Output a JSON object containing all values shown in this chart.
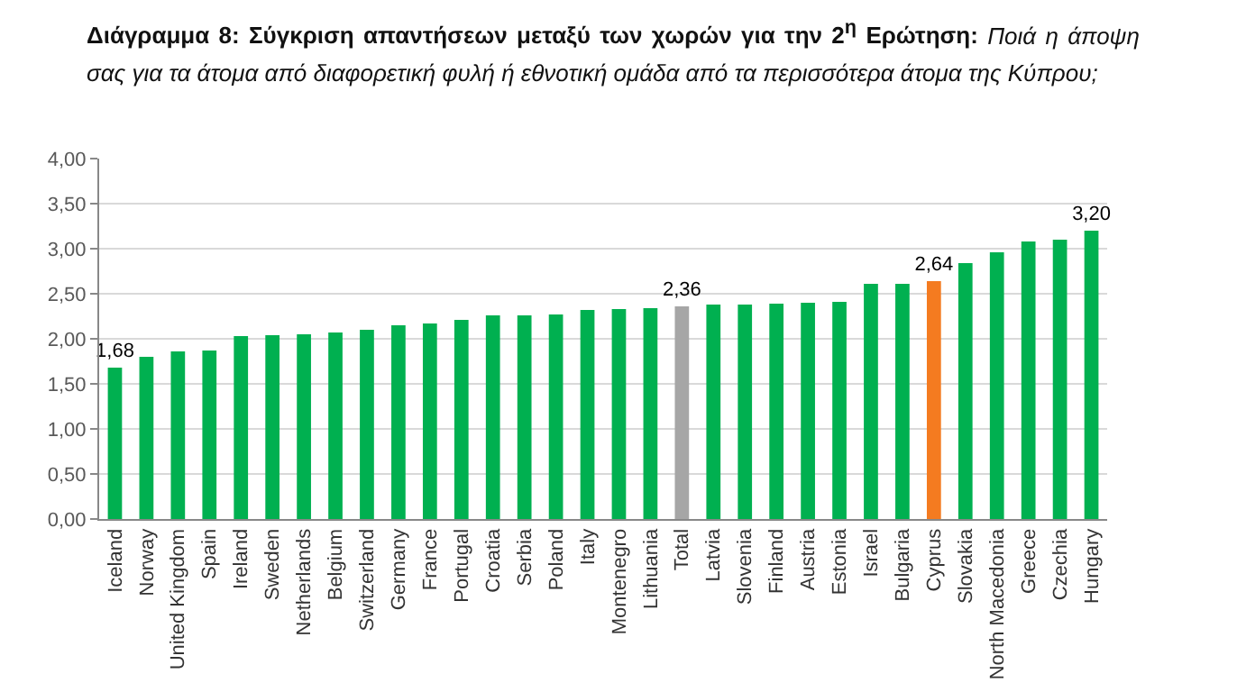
{
  "chart_data": {
    "type": "bar",
    "title": "Διάγραμμα 8: Σύγκριση απαντήσεων μεταξύ των χωρών για την 2$^{η}$ Ερώτηση:",
    "subtitle": "Ποιά η άποψη σας για τα άτομα από διαφορετική φυλή ή εθνοτική ομάδα από τα περισσότερα άτομα της Κύπρου;",
    "categories": [
      "Iceland",
      "Norway",
      "United Kingdom",
      "Spain",
      "Ireland",
      "Sweden",
      "Netherlands",
      "Belgium",
      "Switzerland",
      "Germany",
      "France",
      "Portugal",
      "Croatia",
      "Serbia",
      "Poland",
      "Italy",
      "Montenegro",
      "Lithuania",
      "Total",
      "Latvia",
      "Slovenia",
      "Finland",
      "Austria",
      "Estonia",
      "Israel",
      "Bulgaria",
      "Cyprus",
      "Slovakia",
      "North Macedonia",
      "Greece",
      "Czechia",
      "Hungary"
    ],
    "values": [
      1.68,
      1.8,
      1.86,
      1.87,
      2.03,
      2.04,
      2.05,
      2.07,
      2.1,
      2.15,
      2.17,
      2.21,
      2.26,
      2.26,
      2.27,
      2.32,
      2.33,
      2.34,
      2.36,
      2.38,
      2.38,
      2.39,
      2.4,
      2.41,
      2.61,
      2.61,
      2.64,
      2.84,
      2.96,
      3.08,
      3.1,
      3.2
    ],
    "colors": [
      "#00b050",
      "#00b050",
      "#00b050",
      "#00b050",
      "#00b050",
      "#00b050",
      "#00b050",
      "#00b050",
      "#00b050",
      "#00b050",
      "#00b050",
      "#00b050",
      "#00b050",
      "#00b050",
      "#00b050",
      "#00b050",
      "#00b050",
      "#00b050",
      "#a6a6a6",
      "#00b050",
      "#00b050",
      "#00b050",
      "#00b050",
      "#00b050",
      "#00b050",
      "#00b050",
      "#f47b20",
      "#00b050",
      "#00b050",
      "#00b050",
      "#00b050",
      "#00b050"
    ],
    "value_labels": [
      "1,68",
      null,
      null,
      null,
      null,
      null,
      null,
      null,
      null,
      null,
      null,
      null,
      null,
      null,
      null,
      null,
      null,
      null,
      "2,36",
      null,
      null,
      null,
      null,
      null,
      null,
      null,
      "2,64",
      null,
      null,
      null,
      null,
      "3,20"
    ],
    "ylim": [
      0,
      4
    ],
    "yticks": [
      {
        "value": 0,
        "label": "0,00"
      },
      {
        "value": 0.5,
        "label": "0,50"
      },
      {
        "value": 1,
        "label": "1,00"
      },
      {
        "value": 1.5,
        "label": "1,50"
      },
      {
        "value": 2,
        "label": "2,00"
      },
      {
        "value": 2.5,
        "label": "2,50"
      },
      {
        "value": 3,
        "label": "3,00"
      },
      {
        "value": 3.5,
        "label": "3,50"
      },
      {
        "value": 4,
        "label": "4,00"
      }
    ],
    "grid": "y"
  }
}
